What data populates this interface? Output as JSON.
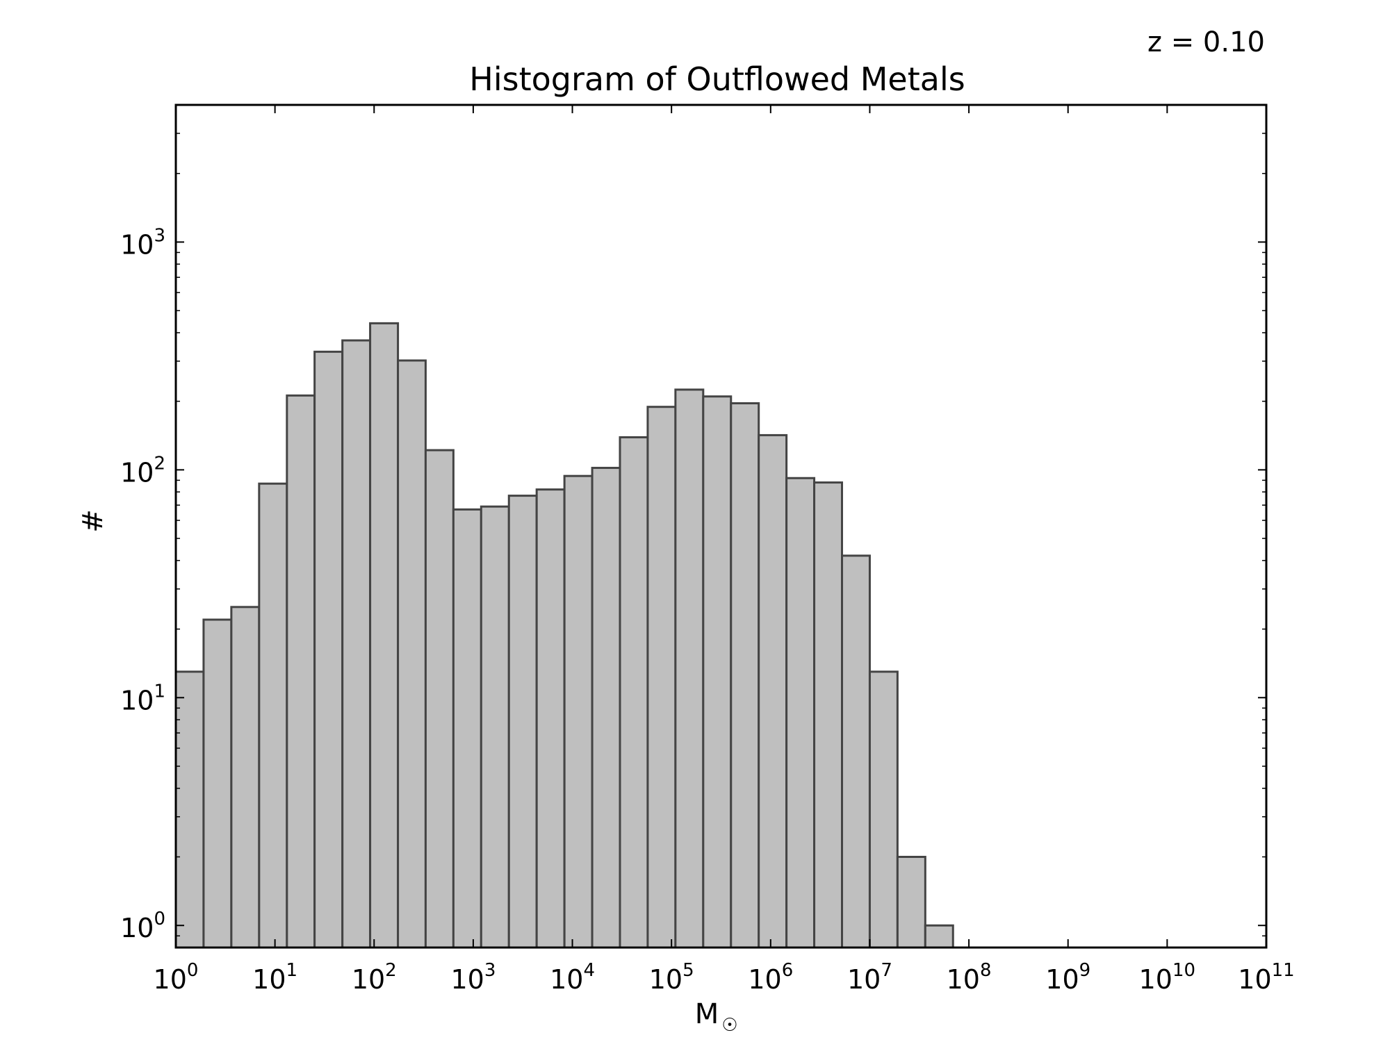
{
  "chart_data": {
    "type": "bar",
    "title": "Histogram of Outflowed Metals",
    "annotation": "z = 0.10",
    "xlabel": "M",
    "xlabel_symbol": "☉",
    "ylabel": "#",
    "x_scale": "log",
    "y_scale": "log",
    "xlim": [
      1,
      100000000000
    ],
    "ylim": [
      0.8,
      4000
    ],
    "x_ticks": [
      {
        "base": "10",
        "exp": "0",
        "value": 1
      },
      {
        "base": "10",
        "exp": "1",
        "value": 10
      },
      {
        "base": "10",
        "exp": "2",
        "value": 100
      },
      {
        "base": "10",
        "exp": "3",
        "value": 1000
      },
      {
        "base": "10",
        "exp": "4",
        "value": 10000
      },
      {
        "base": "10",
        "exp": "5",
        "value": 100000
      },
      {
        "base": "10",
        "exp": "6",
        "value": 1000000
      },
      {
        "base": "10",
        "exp": "7",
        "value": 10000000
      },
      {
        "base": "10",
        "exp": "8",
        "value": 100000000
      },
      {
        "base": "10",
        "exp": "9",
        "value": 1000000000
      },
      {
        "base": "10",
        "exp": "10",
        "value": 10000000000
      },
      {
        "base": "10",
        "exp": "11",
        "value": 100000000000
      }
    ],
    "y_ticks": [
      {
        "base": "10",
        "exp": "0",
        "value": 1
      },
      {
        "base": "10",
        "exp": "1",
        "value": 10
      },
      {
        "base": "10",
        "exp": "2",
        "value": 100
      },
      {
        "base": "10",
        "exp": "3",
        "value": 1000
      }
    ],
    "bin_width_dex": 0.2797,
    "bins": [
      {
        "x_low": 1.0,
        "x_high": 1.905,
        "count": 13
      },
      {
        "x_low": 1.905,
        "x_high": 3.63,
        "count": 22
      },
      {
        "x_low": 3.63,
        "x_high": 6.92,
        "count": 25
      },
      {
        "x_low": 6.92,
        "x_high": 13.2,
        "count": 87
      },
      {
        "x_low": 13.2,
        "x_high": 25.1,
        "count": 212
      },
      {
        "x_low": 25.1,
        "x_high": 47.9,
        "count": 330
      },
      {
        "x_low": 47.9,
        "x_high": 91.2,
        "count": 370
      },
      {
        "x_low": 91.2,
        "x_high": 174,
        "count": 440
      },
      {
        "x_low": 174,
        "x_high": 331,
        "count": 302
      },
      {
        "x_low": 331,
        "x_high": 631,
        "count": 122
      },
      {
        "x_low": 631,
        "x_high": 1202,
        "count": 67
      },
      {
        "x_low": 1202,
        "x_high": 2291,
        "count": 69
      },
      {
        "x_low": 2291,
        "x_high": 4365,
        "count": 77
      },
      {
        "x_low": 4365,
        "x_high": 8318,
        "count": 82
      },
      {
        "x_low": 8318,
        "x_high": 15850,
        "count": 94
      },
      {
        "x_low": 15850,
        "x_high": 30200,
        "count": 102
      },
      {
        "x_low": 30200,
        "x_high": 57540,
        "count": 139
      },
      {
        "x_low": 57540,
        "x_high": 109600,
        "count": 189
      },
      {
        "x_low": 109600,
        "x_high": 208900,
        "count": 225
      },
      {
        "x_low": 208900,
        "x_high": 398100,
        "count": 210
      },
      {
        "x_low": 398100,
        "x_high": 758600,
        "count": 196
      },
      {
        "x_low": 758600,
        "x_high": 1445000,
        "count": 142
      },
      {
        "x_low": 1445000,
        "x_high": 2754000,
        "count": 92
      },
      {
        "x_low": 2754000,
        "x_high": 5248000,
        "count": 88
      },
      {
        "x_low": 5248000,
        "x_high": 10000000,
        "count": 42
      },
      {
        "x_low": 10000000,
        "x_high": 19050000,
        "count": 13
      },
      {
        "x_low": 19050000,
        "x_high": 36310000,
        "count": 2
      },
      {
        "x_low": 36310000,
        "x_high": 69180000,
        "count": 1
      }
    ],
    "bar_color": "#bfbfbf",
    "edge_color": "#444444",
    "grid": false,
    "legend": "none"
  }
}
